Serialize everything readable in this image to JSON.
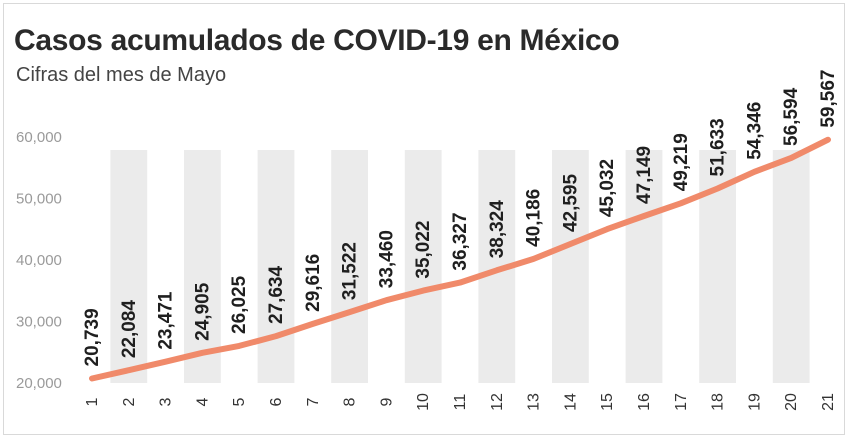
{
  "title": "Casos acumulados de COVID-19 en México",
  "subtitle": "Cifras del mes de Mayo",
  "colors": {
    "line": "#f08a6a",
    "band": "#ebebeb",
    "text": "#1f1f1f",
    "axis_text": "#9a9a9a"
  },
  "chart_data": {
    "type": "line",
    "title": "Casos acumulados de COVID-19 en México",
    "subtitle": "Cifras del mes de Mayo",
    "xlabel": "",
    "ylabel": "",
    "x": [
      "1",
      "2",
      "3",
      "4",
      "5",
      "6",
      "7",
      "8",
      "9",
      "10",
      "11",
      "12",
      "13",
      "14",
      "15",
      "16",
      "17",
      "18",
      "19",
      "20",
      "21"
    ],
    "values": [
      20739,
      22084,
      23471,
      24905,
      26025,
      27634,
      29616,
      31522,
      33460,
      35022,
      36327,
      38324,
      40186,
      42595,
      45032,
      47149,
      49219,
      51633,
      54346,
      56594,
      59567
    ],
    "labels": [
      "20,739",
      "22,084",
      "23,471",
      "24,905",
      "26,025",
      "27,634",
      "29,616",
      "31,522",
      "33,460",
      "35,022",
      "36,327",
      "38,324",
      "40,186",
      "42,595",
      "45,032",
      "47,149",
      "49,219",
      "51,633",
      "54,346",
      "56,594",
      "59,567"
    ],
    "ylim": [
      20000,
      60000
    ],
    "yticks": [
      20000,
      30000,
      40000,
      50000,
      60000
    ],
    "ytick_labels": [
      "20,000",
      "30,000",
      "40,000",
      "50,000",
      "60,000"
    ],
    "grid": false,
    "legend": "none"
  }
}
